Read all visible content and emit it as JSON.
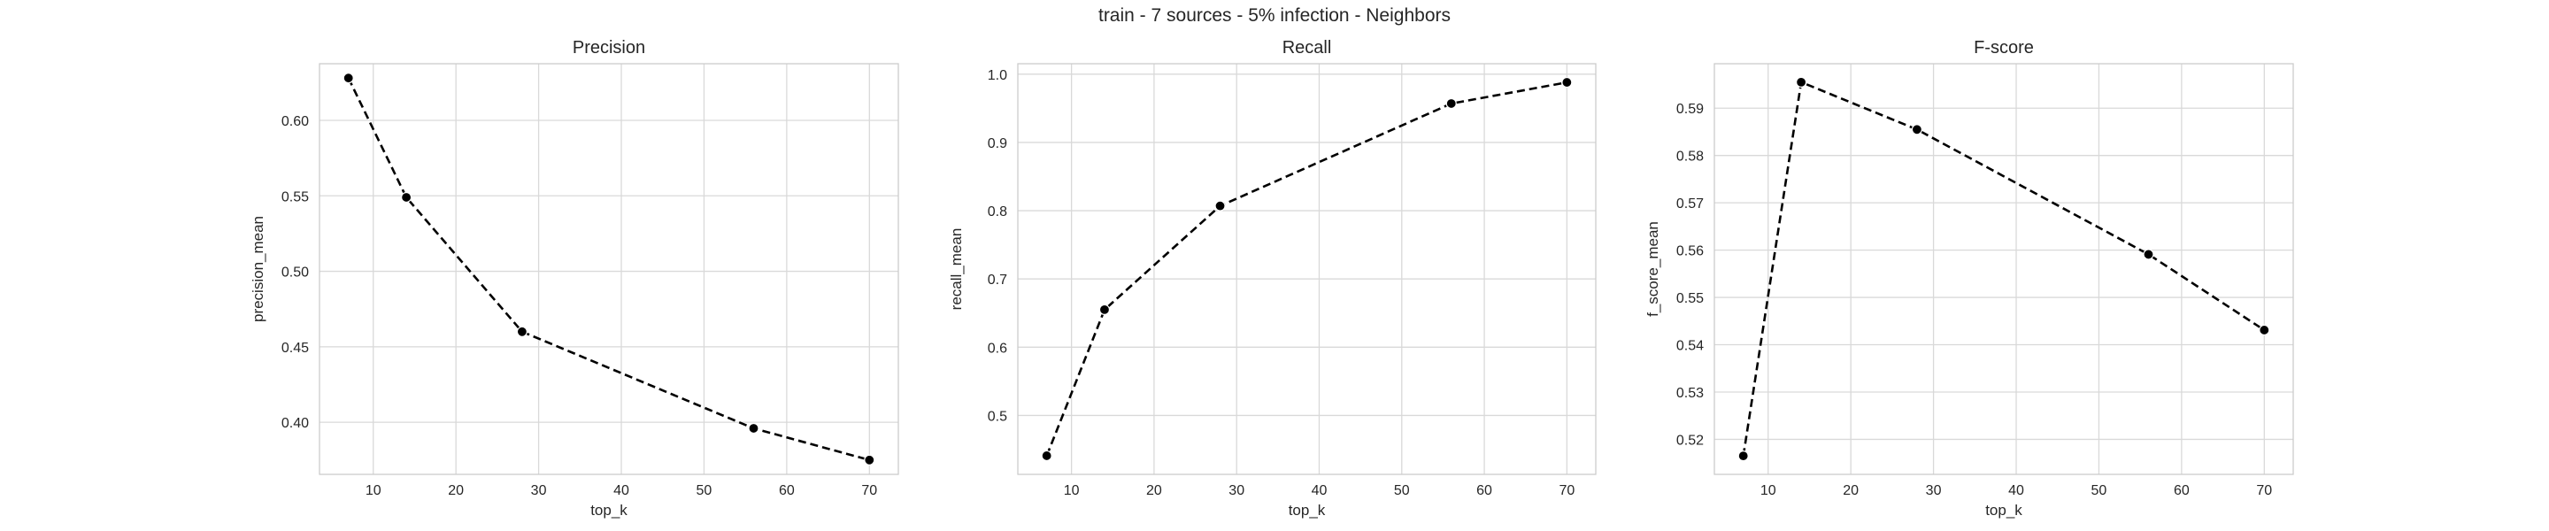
{
  "figure": {
    "title": "train - 7 sources - 5% infection - Neighbors"
  },
  "chart_data": [
    {
      "type": "line",
      "title": "Precision",
      "xlabel": "top_k",
      "ylabel": "precision_mean",
      "x": [
        7,
        14,
        28,
        56,
        70
      ],
      "values": [
        0.628,
        0.549,
        0.46,
        0.396,
        0.375
      ],
      "xlim": [
        3.5,
        73.5
      ],
      "ylim": [
        0.3655,
        0.6375
      ],
      "xticks": [
        10,
        20,
        30,
        40,
        50,
        60,
        70
      ],
      "yticks": [
        0.4,
        0.45,
        0.5,
        0.55,
        0.6
      ],
      "ytick_decimals": 2,
      "grid": true,
      "marker": "circle",
      "line_style": "dashed",
      "color": "#000000"
    },
    {
      "type": "line",
      "title": "Recall",
      "xlabel": "top_k",
      "ylabel": "recall_mean",
      "x": [
        7,
        14,
        28,
        56,
        70
      ],
      "values": [
        0.441,
        0.655,
        0.807,
        0.957,
        0.988
      ],
      "xlim": [
        3.5,
        73.5
      ],
      "ylim": [
        0.4137,
        1.0153
      ],
      "xticks": [
        10,
        20,
        30,
        40,
        50,
        60,
        70
      ],
      "yticks": [
        0.5,
        0.6,
        0.7,
        0.8,
        0.9,
        1.0
      ],
      "ytick_decimals": 1,
      "grid": true,
      "marker": "circle",
      "line_style": "dashed",
      "color": "#000000"
    },
    {
      "type": "line",
      "title": "F-score",
      "xlabel": "top_k",
      "ylabel": "f_score_mean",
      "x": [
        7,
        14,
        28,
        56,
        70
      ],
      "values": [
        0.5165,
        0.5955,
        0.5855,
        0.5591,
        0.5431
      ],
      "xlim": [
        3.5,
        73.5
      ],
      "ylim": [
        0.5126,
        0.5994
      ],
      "xticks": [
        10,
        20,
        30,
        40,
        50,
        60,
        70
      ],
      "yticks": [
        0.52,
        0.53,
        0.54,
        0.55,
        0.56,
        0.57,
        0.58,
        0.59
      ],
      "ytick_decimals": 2,
      "grid": true,
      "marker": "circle",
      "line_style": "dashed",
      "color": "#000000"
    }
  ]
}
